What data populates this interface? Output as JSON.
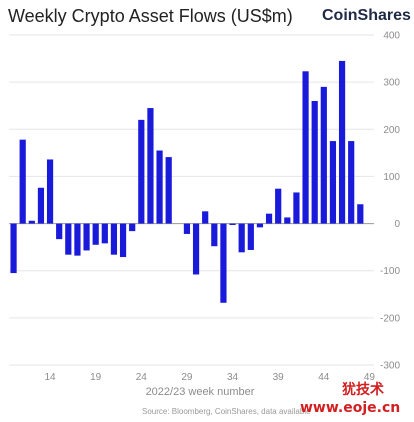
{
  "header": {
    "title": "Weekly Crypto Asset Flows (US$m)",
    "brand": "CoinShares"
  },
  "footer": {
    "source": "Source: Bloomberg, CoinShares, data available",
    "watermark_line1": "犹技术",
    "watermark_line2": "www.eoje.cn"
  },
  "colors": {
    "bar": "#1a1adb",
    "grid": "#e6e6e6",
    "zero": "#9a9a9a"
  },
  "chart_data": {
    "type": "bar",
    "title": "Weekly Crypto Asset Flows (US$m)",
    "xlabel": "2022/23 week number",
    "ylabel": "",
    "ylim": [
      -300,
      400
    ],
    "yticks": [
      400,
      300,
      200,
      100,
      0,
      -100,
      -200,
      -300
    ],
    "xticks": [
      14,
      19,
      24,
      29,
      34,
      39,
      44,
      49
    ],
    "x": [
      10,
      11,
      12,
      13,
      14,
      15,
      16,
      17,
      18,
      19,
      20,
      21,
      22,
      23,
      24,
      25,
      26,
      27,
      28,
      29,
      30,
      31,
      32,
      33,
      34,
      35,
      36,
      37,
      38,
      39,
      40,
      41,
      42,
      43,
      44,
      45,
      46,
      47,
      48,
      49
    ],
    "values": [
      -105,
      178,
      6,
      76,
      136,
      -33,
      -66,
      -68,
      -57,
      -45,
      -42,
      -66,
      -71,
      -16,
      220,
      245,
      155,
      141,
      0,
      -22,
      -108,
      26,
      -48,
      -168,
      -3,
      -61,
      -56,
      -8,
      21,
      74,
      13,
      66,
      323,
      260,
      290,
      175,
      345,
      175,
      41,
      0
    ],
    "grid": true,
    "legend": "none"
  }
}
